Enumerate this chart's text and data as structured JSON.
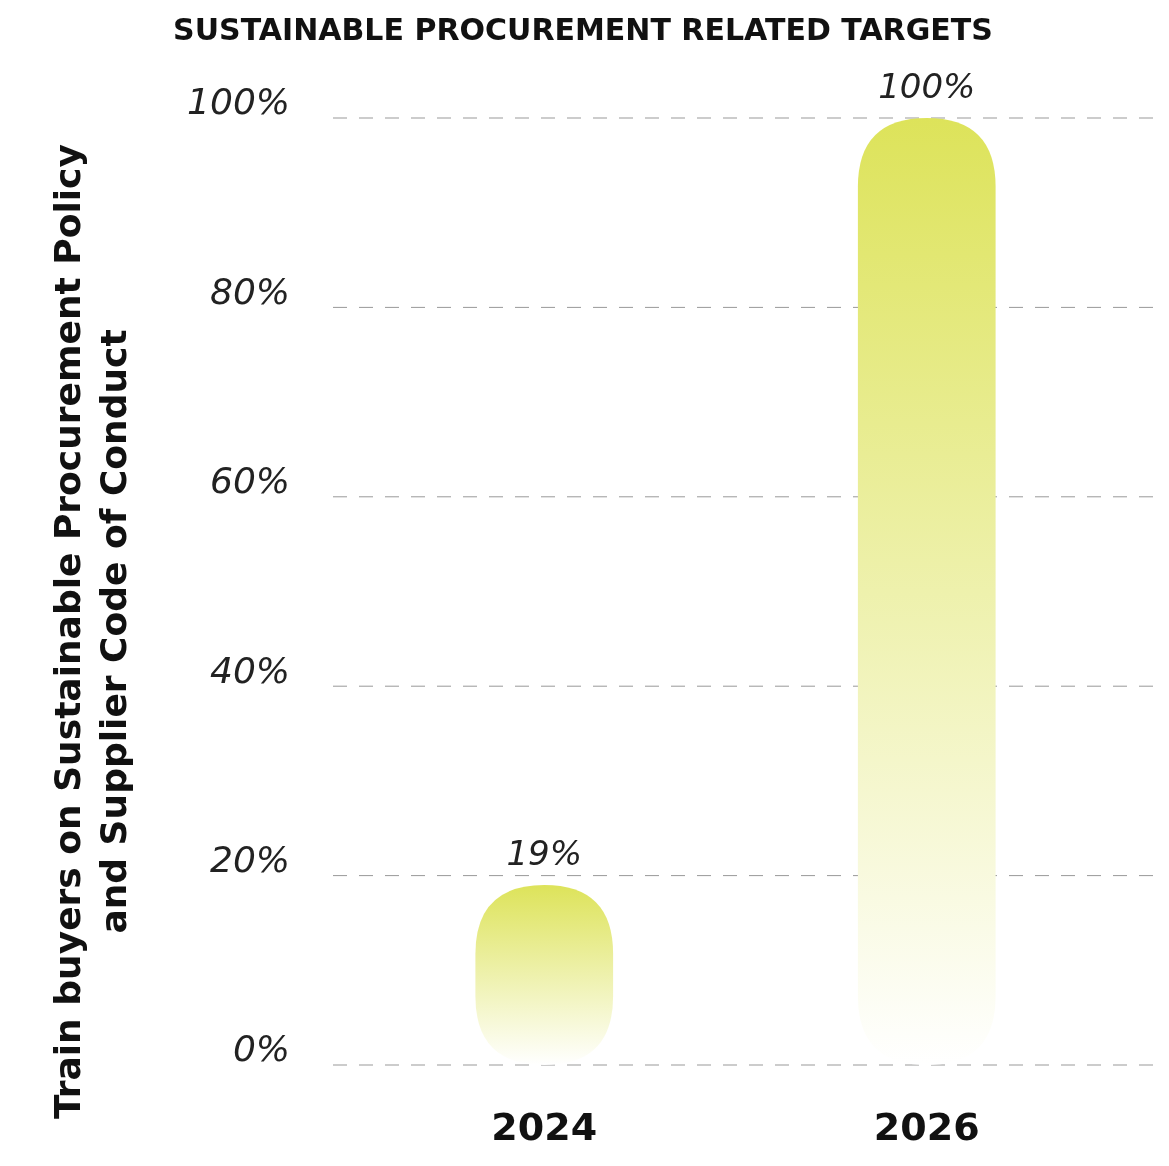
{
  "chart_data": {
    "type": "bar",
    "title": "SUSTAINABLE PROCUREMENT RELATED TARGETS",
    "ylabel": "Train buyers on Sustainable Procurement Policy and Supplier Code of Conduct",
    "categories": [
      "2024",
      "2026"
    ],
    "values": [
      19,
      100
    ],
    "color": "#dde35a",
    "ylim": [
      0,
      100
    ],
    "yticks": [
      {
        "value": 0,
        "label": "0%"
      },
      {
        "value": 20,
        "label": "20%"
      },
      {
        "value": 40,
        "label": "40%"
      },
      {
        "value": 60,
        "label": "60%"
      },
      {
        "value": 80,
        "label": "80%"
      },
      {
        "value": 100,
        "label": "100%"
      }
    ],
    "value_labels": [
      "19%",
      "100%"
    ],
    "grid": "y"
  }
}
